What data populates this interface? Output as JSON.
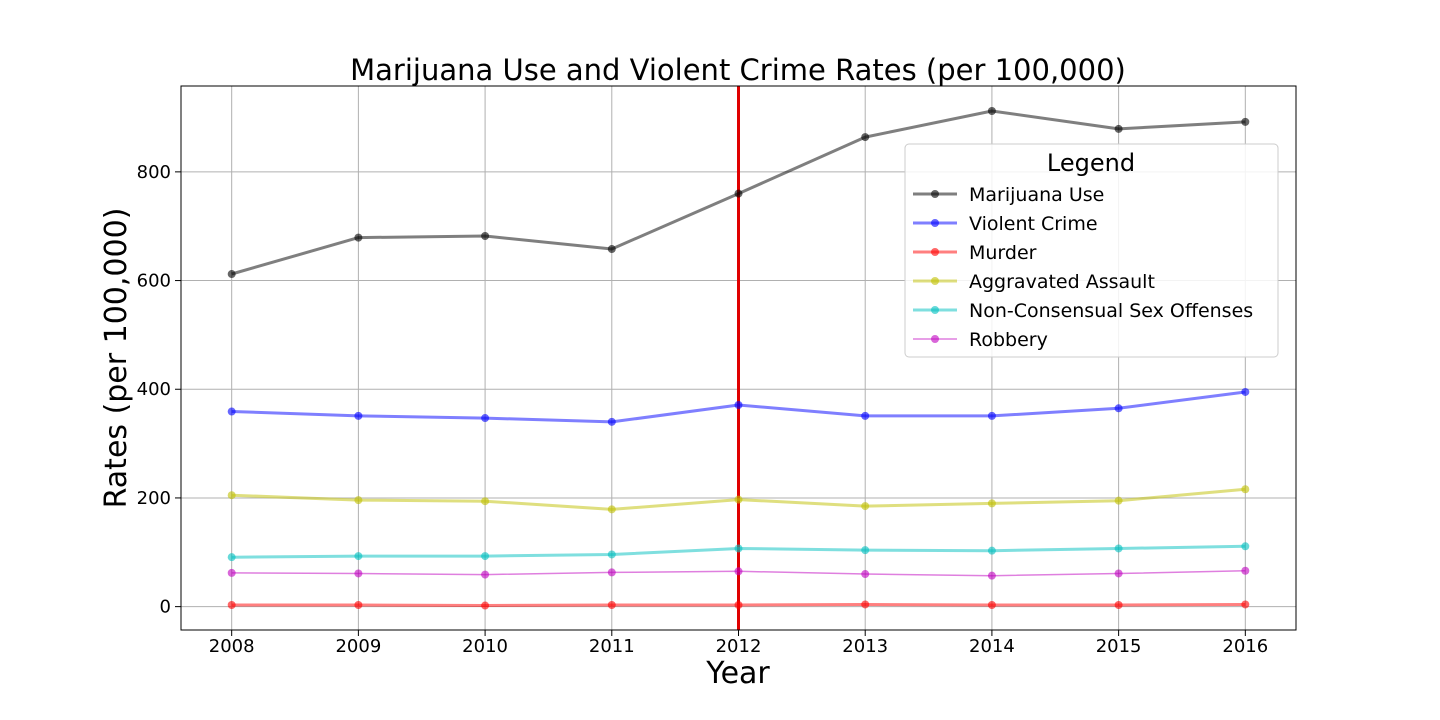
{
  "chart_data": {
    "type": "line",
    "title": "Marijuana Use and Violent Crime Rates (per 100,000)",
    "xlabel": "Year",
    "ylabel": "Rates (per 100,000)",
    "x": [
      2008,
      2009,
      2010,
      2011,
      2012,
      2013,
      2014,
      2015,
      2016
    ],
    "xlim": [
      2007.6,
      2016.4
    ],
    "ylim": [
      -43,
      958
    ],
    "yticks": [
      0,
      200,
      400,
      600,
      800
    ],
    "grid": true,
    "legend": {
      "title": "Legend",
      "placement": "upper-right"
    },
    "vline": {
      "x": 2012,
      "color": "#e00000"
    },
    "series": [
      {
        "name": "Marijuana Use",
        "color": "#000000",
        "values": [
          612,
          679,
          682,
          658,
          760,
          864,
          912,
          879,
          892
        ]
      },
      {
        "name": "Violent Crime",
        "color": "#0000ff",
        "values": [
          359,
          351,
          347,
          340,
          371,
          351,
          351,
          365,
          395
        ]
      },
      {
        "name": "Murder",
        "color": "#ff0000",
        "values": [
          3,
          3,
          2,
          3,
          3,
          4,
          3,
          3,
          4
        ]
      },
      {
        "name": "Aggravated Assault",
        "color": "#bfbf00",
        "values": [
          205,
          196,
          194,
          179,
          197,
          185,
          190,
          195,
          216
        ]
      },
      {
        "name": "Non-Consensual Sex Offenses",
        "color": "#00bfbf",
        "values": [
          91,
          93,
          93,
          96,
          107,
          104,
          103,
          107,
          111
        ]
      },
      {
        "name": "Robbery",
        "color": "#bf00bf",
        "values": [
          62,
          61,
          59,
          63,
          65,
          60,
          57,
          61,
          66
        ]
      }
    ]
  }
}
